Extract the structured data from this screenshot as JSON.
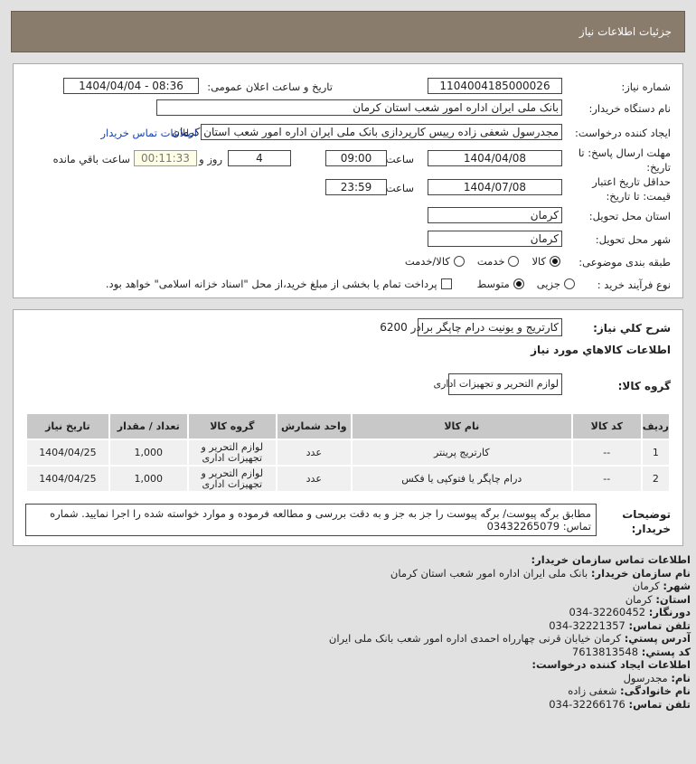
{
  "header": {
    "title": "جزئیات اطلاعات نیاز"
  },
  "form": {
    "need_number_label": "شماره نیاز:",
    "need_number": "1104004185000026",
    "announce_label": "تاریخ و ساعت اعلان عمومی:",
    "announce_value": "1404/04/04 - 08:36",
    "buyer_label": "نام دستگاه خریدار:",
    "buyer_value": "بانک ملی ایران اداره امور شعب استان کرمان",
    "creator_label": "ایجاد کننده درخواست:",
    "creator_value": "مجدرسول شعفی زاده رییس کارپردازی بانک ملی ایران اداره امور شعب استان کرمان",
    "contact_link": "اطلاعات تماس خریدار",
    "deadline_label_1": "مهلت ارسال پاسخ: تا",
    "deadline_label_2": "تاریخ:",
    "deadline_date": "1404/04/08",
    "time_label": "ساعت",
    "deadline_time": "09:00",
    "days": "4",
    "days_label": "روز و",
    "remaining": "00:11:33",
    "remaining_label": "ساعت باقي مانده",
    "validity_label_1": "حداقل تاریخ اعتبار",
    "validity_label_2": "قیمت: تا تاریخ:",
    "validity_date": "1404/07/08",
    "validity_time": "23:59",
    "province_label": "استان محل تحویل:",
    "province": "کرمان",
    "city_label": "شهر محل تحویل:",
    "city": "کرمان",
    "category_label": "طبقه بندی موضوعی:",
    "category_options": [
      "کالا",
      "خدمت",
      "کالا/خدمت"
    ],
    "category_selected": "کالا",
    "process_label": "نوع فرآیند خرید :",
    "process_options": [
      "جزیی",
      "متوسط"
    ],
    "process_selected": "متوسط",
    "payment_note": "پرداخت تمام یا بخشی از مبلغ خرید،از محل \"اسناد خزانه اسلامی\" خواهد بود."
  },
  "goods": {
    "summary_label": "شرح کلي نیاز:",
    "summary": "کارتریج و یونیت درام چاپگر برادر 6200",
    "heading": "اطلاعات کالاهاي مورد نیاز",
    "group_label": "گروه کالا:",
    "group": "لوازم التحریر و تجهیزات اداری",
    "columns": [
      "ردیف",
      "کد کالا",
      "نام کالا",
      "واحد شمارش",
      "گروه کالا",
      "تعداد / مقدار",
      "تاریخ نیاز"
    ],
    "rows": [
      [
        "1",
        "--",
        "کارتریج پرینتر",
        "عدد",
        "لوازم التحریر و تجهیزات اداری",
        "1,000",
        "1404/04/25"
      ],
      [
        "2",
        "--",
        "درام چاپگر یا فتوکپی یا فکس",
        "عدد",
        "لوازم التحریر و تجهیزات اداری",
        "1,000",
        "1404/04/25"
      ]
    ],
    "notes_label_1": "توضیحات",
    "notes_label_2": "خریدار:",
    "notes": "مطابق برگه پیوست/ برگه پیوست را جز به جز و به دقت بررسی و مطالعه فرموده و موارد خواسته شده را اجرا نمایید. شماره تماس: 03432265079"
  },
  "contact": {
    "heading": "اطلاعات تماس سازمان خریدار:",
    "org_label": "نام سازمان خریدار:",
    "org": "بانک ملی ایران اداره امور شعب استان کرمان",
    "city_label": "شهر:",
    "city": "کرمان",
    "province_label": "استان:",
    "province": "کرمان",
    "fax_label": "دورنگار:",
    "fax": "034-32260452",
    "phone_label": "تلفن تماس:",
    "phone": "034-32221357",
    "address_label": "آدرس پستي:",
    "address": "کرمان خیابان قرنی چهارراه احمدی اداره امور شعب بانک ملی ایران",
    "postal_label": "کد پستي:",
    "postal": "7613813548",
    "creator_heading": "اطلاعات ایجاد کننده درخواست:",
    "name_label": "نام:",
    "name": "مجدرسول",
    "family_label": "نام خانوادگی:",
    "family": "شعفی زاده",
    "creator_phone_label": "تلفن تماس:",
    "creator_phone": "034-32266176"
  },
  "colors": {
    "header": "#8a7c6c",
    "link": "#1a3fb0",
    "page_bg": "#e1e1e1"
  }
}
